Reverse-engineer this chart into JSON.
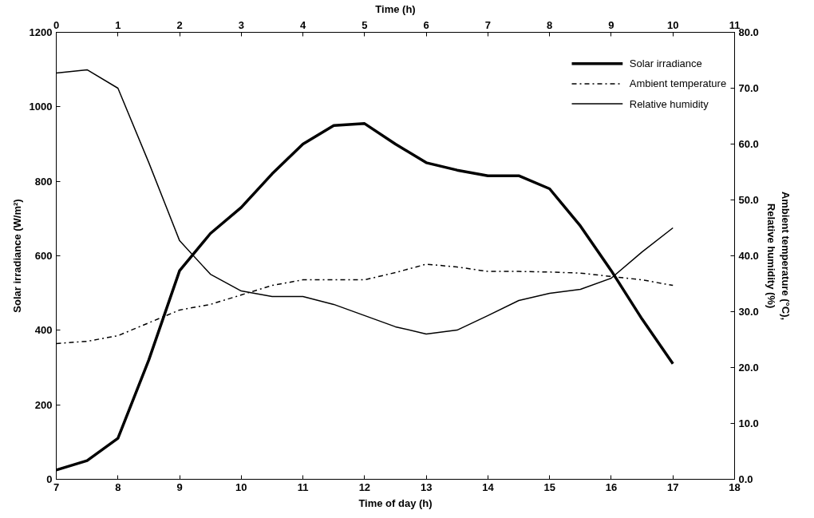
{
  "chart_data": {
    "type": "line",
    "xlabel": "Time of day (h)",
    "x2label": "Time (h)",
    "ylabel": "Solar irradiance (W/m²)",
    "y2label": "Ambient temperature (°C),\nRelative humidity (%)",
    "x": [
      7,
      7.5,
      8,
      8.5,
      9,
      9.5,
      10,
      10.5,
      11,
      11.5,
      12,
      12.5,
      13,
      13.5,
      14,
      14.5,
      15,
      15.5,
      16,
      16.5,
      17
    ],
    "xlim": [
      7,
      18
    ],
    "xticks": [
      7,
      8,
      9,
      10,
      11,
      12,
      13,
      14,
      15,
      16,
      17,
      18
    ],
    "x2lim": [
      0,
      11
    ],
    "x2ticks": [
      0,
      1,
      2,
      3,
      4,
      5,
      6,
      7,
      8,
      9,
      10,
      11
    ],
    "ylim": [
      0,
      1200
    ],
    "yticks": [
      0,
      200,
      400,
      600,
      800,
      1000,
      1200
    ],
    "y2lim": [
      0,
      80
    ],
    "y2ticks": [
      {
        "value": 0,
        "label": "0.0"
      },
      {
        "value": 10,
        "label": "10.0"
      },
      {
        "value": 20,
        "label": "20.0"
      },
      {
        "value": 30,
        "label": "30.0"
      },
      {
        "value": 40,
        "label": "40.0"
      },
      {
        "value": 50,
        "label": "50.0"
      },
      {
        "value": 60,
        "label": "60.0"
      },
      {
        "value": 70,
        "label": "70.0"
      },
      {
        "value": 80,
        "label": "80.0"
      }
    ],
    "series": [
      {
        "name": "Solar irradiance",
        "color": "#000000",
        "line_style": "solid",
        "values": [
          25,
          50,
          110,
          320,
          560,
          660,
          730,
          820,
          900,
          950,
          955,
          900,
          850,
          830,
          815,
          815,
          780,
          680,
          560,
          430,
          310
        ]
      },
      {
        "name": "Ambient temperature",
        "color": "#000000",
        "line_style": "dashdot",
        "axis": "y2",
        "values": [
          24.3,
          24.7,
          25.7,
          28,
          30.3,
          31.3,
          33,
          34.7,
          35.7,
          35.7,
          35.7,
          37,
          38.5,
          38,
          37.2,
          37.2,
          37.1,
          36.9,
          36.3,
          35.7,
          34.7
        ]
      },
      {
        "name": "Relative humidity",
        "color": "#000000",
        "line_style": "solid",
        "axis": "y2",
        "values": [
          72.7,
          73.3,
          70,
          56.7,
          42.7,
          36.7,
          33.7,
          32.7,
          32.7,
          31.3,
          29.3,
          27.3,
          26,
          26.7,
          29.3,
          32,
          33.3,
          34,
          36,
          40.7,
          45
        ]
      }
    ],
    "legend": "top right",
    "grid": false,
    "marker": "none"
  }
}
